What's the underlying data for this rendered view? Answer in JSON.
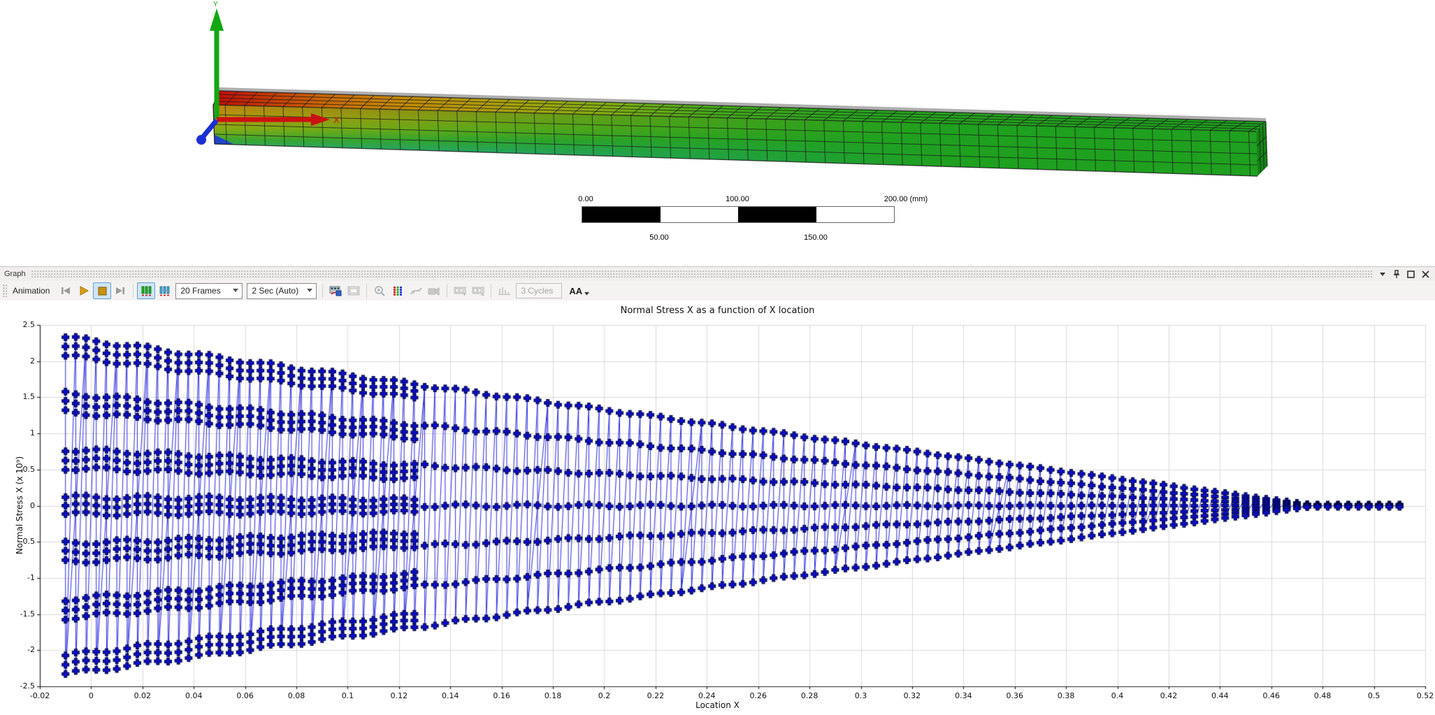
{
  "model": {
    "triad": {
      "x_label": "X",
      "y_label": "Y",
      "x_color": "#cc1111",
      "y_color": "#12a812",
      "z_color": "#1c2fd4"
    },
    "ruler": {
      "labels": [
        "0.00",
        "50.00",
        "100.00",
        "150.00",
        "200.00 (mm)"
      ]
    },
    "mesh": {
      "columns": 54,
      "front_rows": 4,
      "top_rows": 4,
      "cap_cols": 3,
      "cap_rows": 3
    },
    "contour_colors": {
      "max": "#c00909",
      "high": "#c96a08",
      "mid_high": "#ab9f0e",
      "neutral": "#1fa01f",
      "mid_low": "#27a2ad",
      "low": "#2492c4",
      "min": "#2244cc"
    }
  },
  "graph_panel": {
    "title": "Graph",
    "toolbar": {
      "animation_label": "Animation",
      "frames_select": "20 Frames",
      "duration_select": "2 Sec (Auto)",
      "cycles_value": "3 Cycles",
      "aa_label": "AA"
    }
  },
  "chart_data": {
    "type": "scatter-line",
    "title": "Normal Stress X as a function of X location",
    "xlabel": "Location X",
    "ylabel": "Normal Stress X (x 10⁹)",
    "xlim": [
      -0.02,
      0.52
    ],
    "ylim": [
      -2.5,
      2.5
    ],
    "grid": true,
    "legend": "none",
    "series_name": "Normal Stress X",
    "marker": "plus",
    "colors": {
      "marker_fill": "#0d0dc8",
      "marker_edge": "#000838",
      "line": "#2a2ae0",
      "grid": "#dadada",
      "axis": "#222222"
    },
    "x_tick_labels": [
      "-0.02",
      "0",
      "0.02",
      "0.04",
      "0.06",
      "0.08",
      "0.1",
      "0.12",
      "0.14",
      "0.16",
      "0.18",
      "0.2",
      "0.22",
      "0.24",
      "0.26",
      "0.28",
      "0.3",
      "0.32",
      "0.34",
      "0.36",
      "0.38",
      "0.4",
      "0.42",
      "0.44",
      "0.46",
      "0.48",
      "0.5",
      "0.52"
    ],
    "y_tick_labels": [
      "2.5",
      "2",
      "1.5",
      "1",
      "0.5",
      "0",
      "-0.5",
      "-1",
      "-1.5",
      "-2",
      "-2.5"
    ],
    "scatter_model": {
      "description": "FEA nodal normal stress: one vertical column of points per x location, 7 through-thickness stress levels inside a linearly decaying envelope; unaveraged nodal clusters for x < 0.13; flat ~0 tail to x = 0.51",
      "x_start": -0.01,
      "x_step": 0.004,
      "column_count": 131,
      "levels": [
        1,
        0.6667,
        0.3333,
        0,
        -0.3333,
        -0.6667,
        -1
      ],
      "envelope_peak": 2.33,
      "envelope_zero_x": 0.478,
      "envelope_min": 0.015,
      "cluster_x_max": 0.13,
      "cluster_offsets_outer": [
        0,
        0.055,
        0.11
      ],
      "cluster_offsets_zero": [
        0.05,
        0,
        -0.05
      ]
    },
    "envelope_samples": [
      [
        -0.01,
        2.33
      ],
      [
        0.05,
        2.05
      ],
      [
        0.1,
        1.81
      ],
      [
        0.15,
        1.57
      ],
      [
        0.2,
        1.33
      ],
      [
        0.25,
        1.09
      ],
      [
        0.3,
        0.85
      ],
      [
        0.35,
        0.61
      ],
      [
        0.4,
        0.37
      ],
      [
        0.45,
        0.13
      ],
      [
        0.478,
        0.0
      ],
      [
        0.51,
        0.0
      ]
    ]
  }
}
